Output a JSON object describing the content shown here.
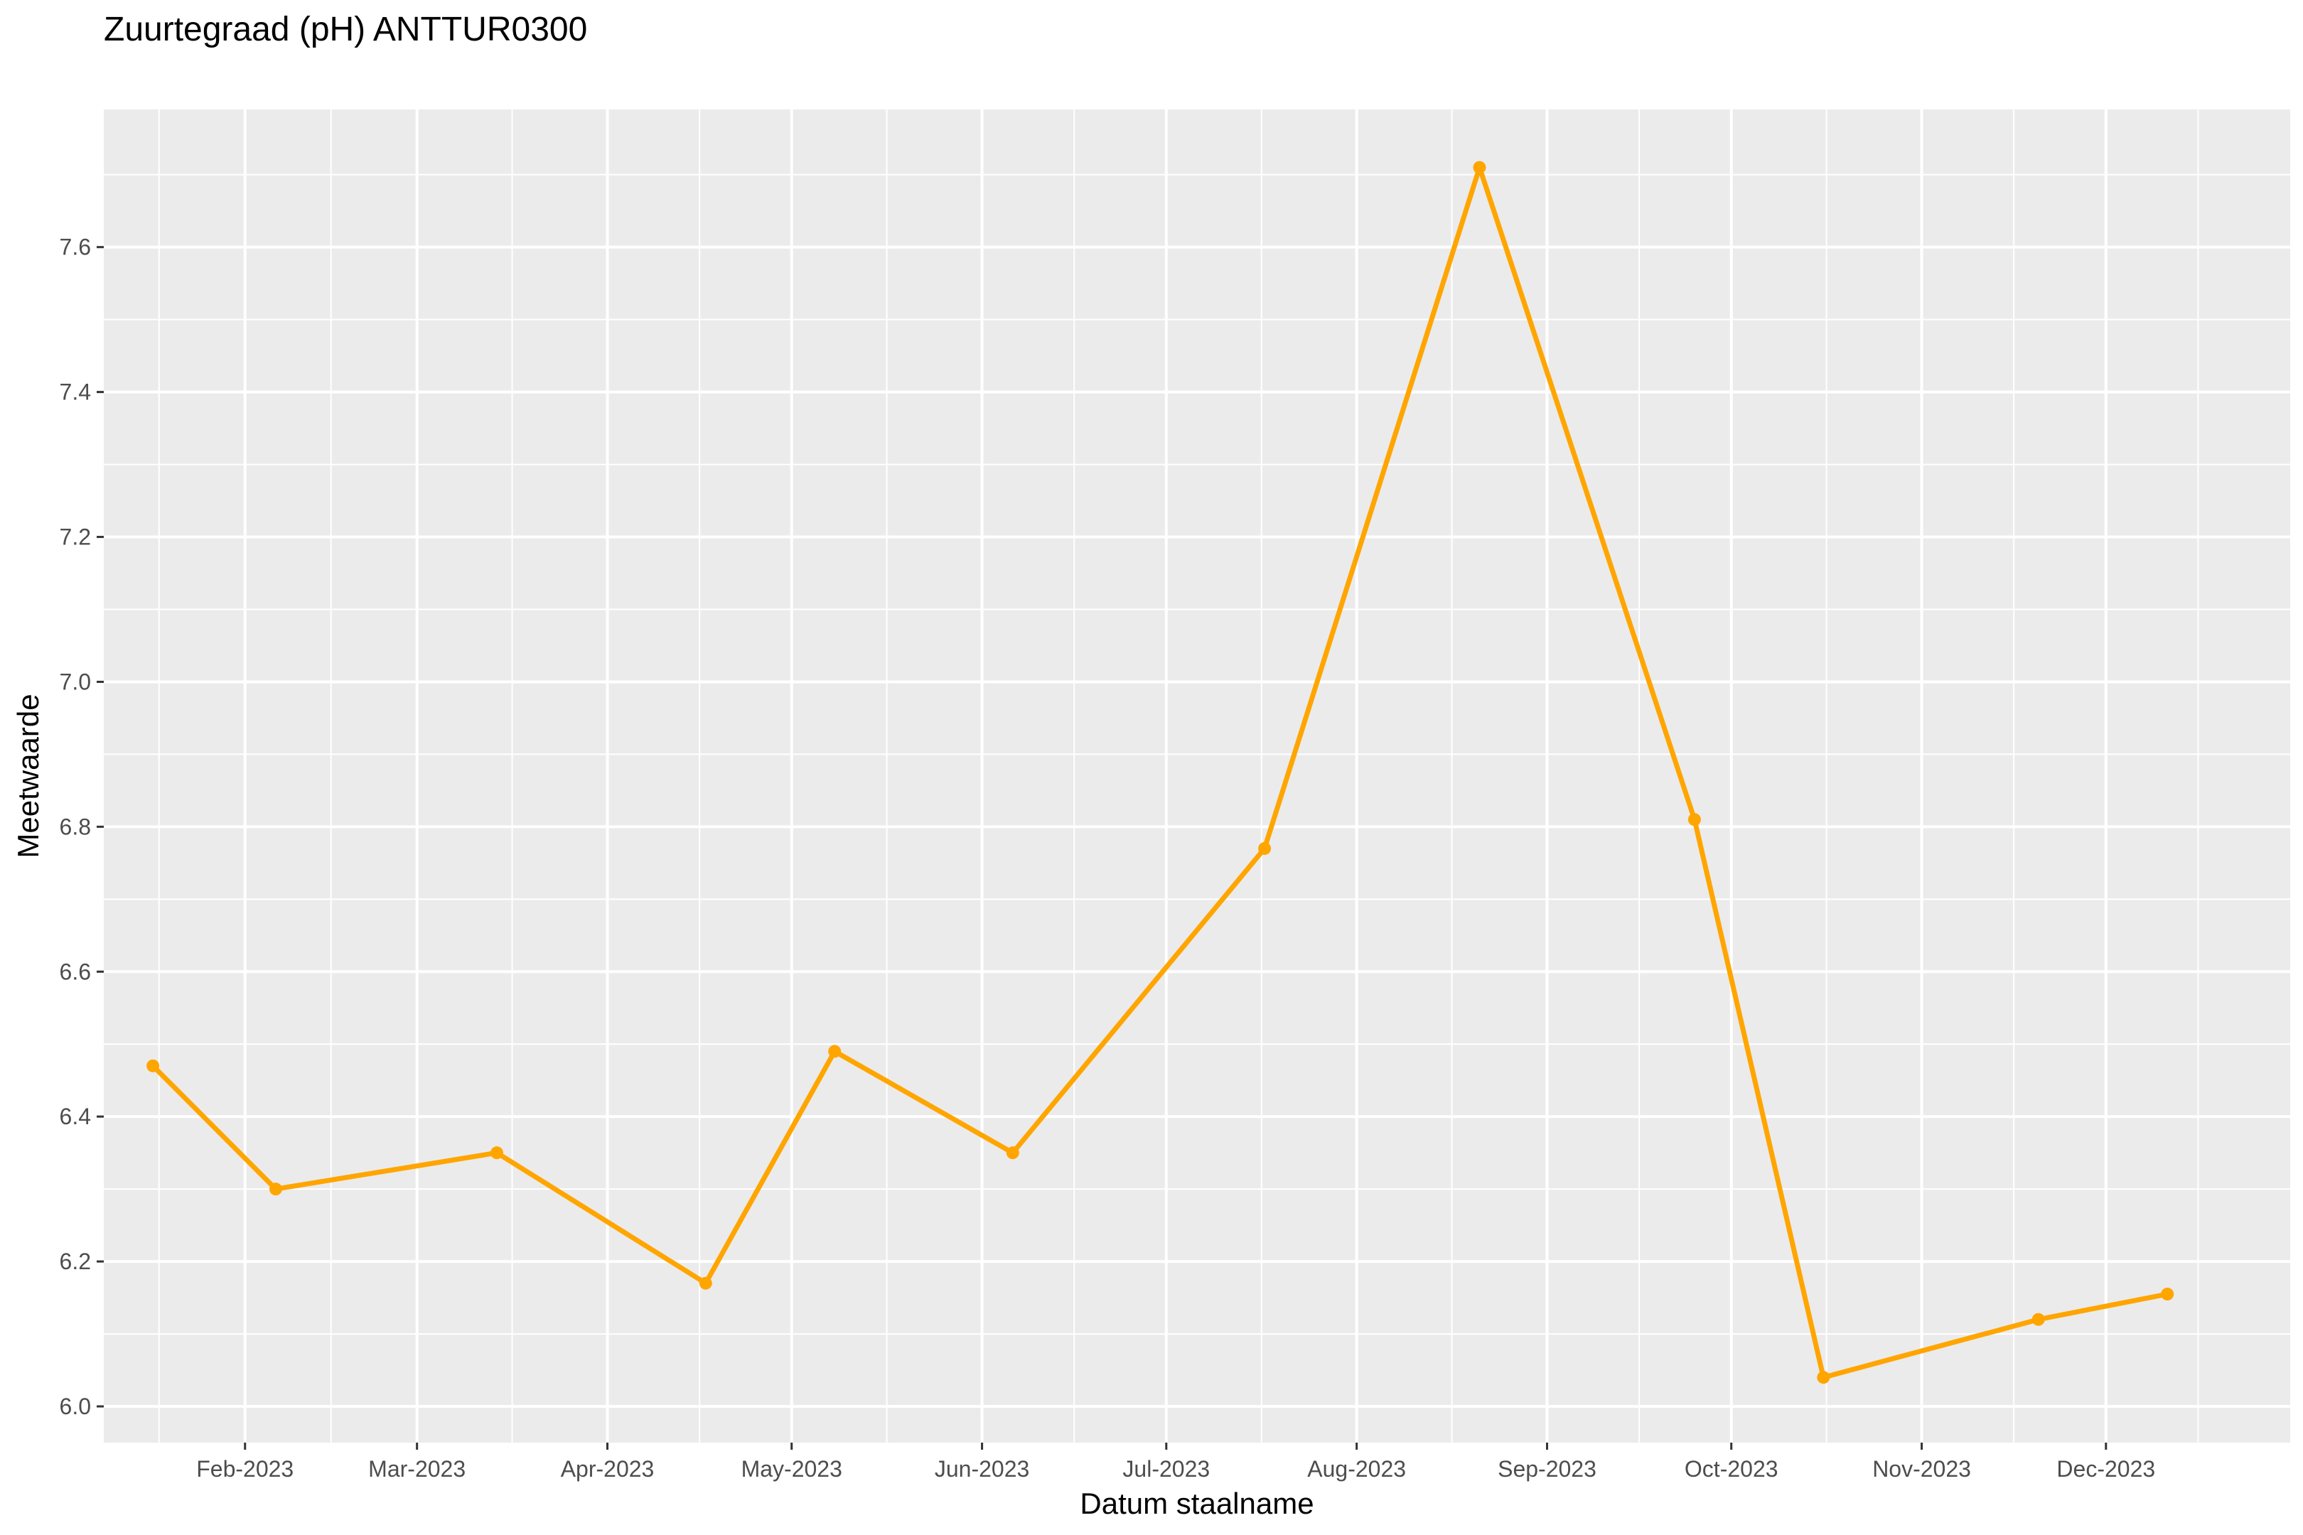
{
  "chart_data": {
    "type": "line",
    "title": "Zuurtegraad (pH) ANTTUR0300",
    "xlabel": "Datum staalname",
    "ylabel": "Meetwaarde",
    "x_type": "date",
    "xlim": [
      "2023-01-09",
      "2023-12-31"
    ],
    "ylim": [
      5.95,
      7.79
    ],
    "x_ticks": [
      {
        "date": "2023-02-01",
        "label": "Feb-2023"
      },
      {
        "date": "2023-03-01",
        "label": "Mar-2023"
      },
      {
        "date": "2023-04-01",
        "label": "Apr-2023"
      },
      {
        "date": "2023-05-01",
        "label": "May-2023"
      },
      {
        "date": "2023-06-01",
        "label": "Jun-2023"
      },
      {
        "date": "2023-07-01",
        "label": "Jul-2023"
      },
      {
        "date": "2023-08-01",
        "label": "Aug-2023"
      },
      {
        "date": "2023-09-01",
        "label": "Sep-2023"
      },
      {
        "date": "2023-10-01",
        "label": "Oct-2023"
      },
      {
        "date": "2023-11-01",
        "label": "Nov-2023"
      },
      {
        "date": "2023-12-01",
        "label": "Dec-2023"
      }
    ],
    "y_ticks": [
      6.0,
      6.2,
      6.4,
      6.6,
      6.8,
      7.0,
      7.2,
      7.4,
      7.6
    ],
    "y_tick_labels": [
      "6.0",
      "6.2",
      "6.4",
      "6.6",
      "6.8",
      "7.0",
      "7.2",
      "7.4",
      "7.6"
    ],
    "grid": true,
    "series": [
      {
        "color": "#FFA500",
        "points": [
          {
            "x": "2023-01-17",
            "y": 6.47
          },
          {
            "x": "2023-02-06",
            "y": 6.3
          },
          {
            "x": "2023-03-14",
            "y": 6.35
          },
          {
            "x": "2023-04-17",
            "y": 6.17
          },
          {
            "x": "2023-05-08",
            "y": 6.49
          },
          {
            "x": "2023-06-06",
            "y": 6.35
          },
          {
            "x": "2023-07-17",
            "y": 6.77
          },
          {
            "x": "2023-08-21",
            "y": 7.71
          },
          {
            "x": "2023-09-25",
            "y": 6.81
          },
          {
            "x": "2023-10-16",
            "y": 6.04
          },
          {
            "x": "2023-11-20",
            "y": 6.12
          },
          {
            "x": "2023-12-11",
            "y": 6.155
          }
        ]
      }
    ],
    "colors": {
      "panel": "#EBEBEB",
      "grid": "#FFFFFF",
      "line": "#FFA500"
    }
  }
}
